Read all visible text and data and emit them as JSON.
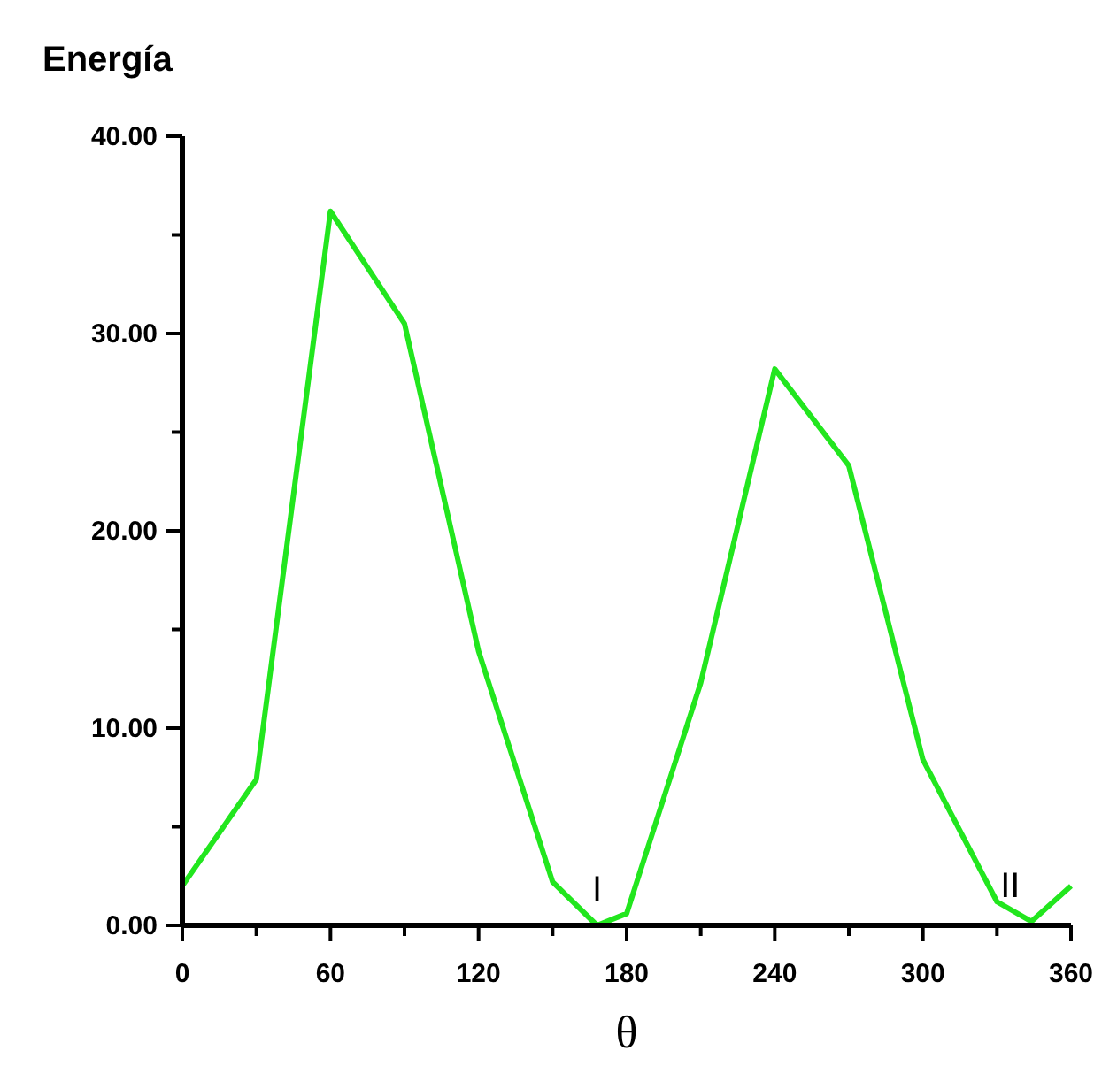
{
  "chart_data": {
    "type": "line",
    "title": "Energía",
    "xlabel": "θ",
    "x": [
      0,
      30,
      60,
      90,
      120,
      150,
      168,
      180,
      210,
      240,
      270,
      300,
      330,
      344,
      360
    ],
    "series": [
      {
        "color": "#22e61e",
        "values": [
          2.0,
          7.4,
          36.2,
          30.5,
          13.9,
          2.2,
          0,
          0.6,
          12.3,
          28.2,
          23.3,
          8.4,
          1.2,
          0.2,
          2.0
        ]
      }
    ],
    "xlim": [
      0,
      360
    ],
    "xticks": [
      0,
      {
        "value": 30,
        "label": null
      },
      60,
      {
        "value": 90,
        "label": null
      },
      120,
      {
        "value": 150,
        "label": null
      },
      180,
      {
        "value": 210,
        "label": null
      },
      240,
      {
        "value": 270,
        "label": null
      },
      300,
      {
        "value": 330,
        "label": null
      },
      360
    ],
    "ylim": [
      0,
      40
    ],
    "yticks": [
      {
        "value": 0,
        "label": "0.00"
      },
      {
        "value": 5,
        "label": null
      },
      {
        "value": 10,
        "label": "10.00"
      },
      {
        "value": 15,
        "label": null
      },
      {
        "value": 20,
        "label": "20.00"
      },
      {
        "value": 25,
        "label": null
      },
      {
        "value": 30,
        "label": "30.00"
      },
      {
        "value": 35,
        "label": null
      },
      {
        "value": 40,
        "label": "40.00"
      }
    ],
    "annotations": [
      {
        "text": "I",
        "x": 168,
        "y": 0
      },
      {
        "text": "II",
        "x": 344,
        "y": 0.2
      }
    ],
    "grid": false,
    "marker": "none",
    "line_style": "solid"
  }
}
